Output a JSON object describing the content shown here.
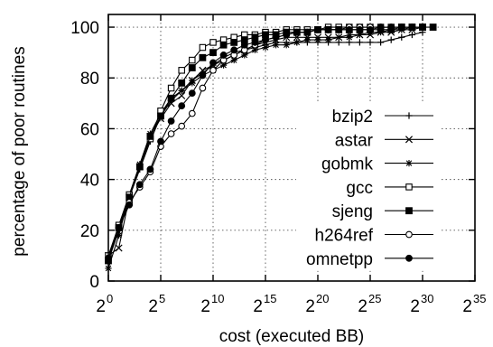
{
  "chart_data": {
    "type": "line",
    "title": "",
    "xlabel": "cost (executed BB)",
    "ylabel": "percentage of poor routines",
    "x_scale": "log2",
    "xlim": [
      1,
      34359738368
    ],
    "ylim": [
      0,
      105
    ],
    "x_ticks": [
      {
        "base": "2",
        "exp": "0",
        "value": 1
      },
      {
        "base": "2",
        "exp": "5",
        "value": 32
      },
      {
        "base": "2",
        "exp": "10",
        "value": 1024
      },
      {
        "base": "2",
        "exp": "15",
        "value": 32768
      },
      {
        "base": "2",
        "exp": "20",
        "value": 1048576
      },
      {
        "base": "2",
        "exp": "25",
        "value": 33554432
      },
      {
        "base": "2",
        "exp": "30",
        "value": 1073741824
      },
      {
        "base": "2",
        "exp": "35",
        "value": 34359738368
      }
    ],
    "y_ticks": [
      "0",
      "20",
      "40",
      "60",
      "80",
      "100"
    ],
    "grid": true,
    "legend_position": "right",
    "series": [
      {
        "name": "bzip2",
        "marker": "plus",
        "x": [
          1,
          2,
          4,
          8,
          16,
          32,
          64,
          128,
          256,
          512,
          1024,
          2048,
          4096,
          8192,
          16384,
          32768,
          65536,
          131072,
          262144,
          524288,
          1048576,
          2097152,
          4194304,
          8388608,
          16777216,
          33554432,
          67108864,
          134217728,
          268435456,
          536870912,
          1073741824
        ],
        "y": [
          8,
          20,
          33,
          44,
          55,
          65,
          71,
          75,
          79,
          82,
          85,
          87,
          89,
          91,
          92,
          93,
          94,
          94,
          94,
          94,
          94,
          94,
          94,
          94,
          94,
          94,
          94,
          95,
          96,
          97,
          98
        ]
      },
      {
        "name": "astar",
        "marker": "x",
        "x": [
          1,
          2,
          4,
          8,
          16,
          32,
          64,
          128,
          256,
          512,
          1024,
          2048,
          4096,
          8192,
          16384,
          32768,
          65536,
          131072,
          262144,
          524288,
          1048576,
          2097152,
          4194304,
          8388608,
          16777216,
          33554432,
          67108864,
          134217728,
          268435456,
          536870912,
          1073741824
        ],
        "y": [
          10,
          13,
          33,
          45,
          57,
          64,
          70,
          73,
          79,
          83,
          85,
          88,
          90,
          91,
          93,
          94,
          95,
          96,
          96,
          96,
          96,
          96,
          96,
          97,
          97,
          97,
          98,
          98,
          99,
          99,
          100
        ]
      },
      {
        "name": "gobmk",
        "marker": "asterisk",
        "x": [
          1,
          2,
          4,
          8,
          16,
          32,
          64,
          128,
          256,
          512,
          1024,
          2048,
          4096,
          8192,
          16384,
          32768,
          65536,
          131072,
          262144,
          524288,
          1048576,
          2097152,
          4194304,
          8388608,
          16777216,
          33554432,
          67108864,
          134217728,
          268435456,
          536870912,
          1073741824
        ],
        "y": [
          5,
          18,
          34,
          46,
          58,
          66,
          72,
          75,
          78,
          81,
          83,
          85,
          87,
          89,
          91,
          92,
          93,
          93,
          94,
          95,
          95,
          95,
          96,
          96,
          97,
          98,
          98,
          99,
          99,
          100,
          100
        ]
      },
      {
        "name": "gcc",
        "marker": "open-square",
        "x": [
          1,
          2,
          4,
          8,
          16,
          32,
          64,
          128,
          256,
          512,
          1024,
          2048,
          4096,
          8192,
          16384,
          32768,
          65536,
          131072,
          262144,
          524288,
          1048576,
          2097152,
          4194304,
          8388608,
          16777216,
          33554432,
          67108864,
          134217728,
          268435456,
          536870912,
          1073741824
        ],
        "y": [
          10,
          22,
          34,
          45,
          56,
          67,
          76,
          83,
          87,
          92,
          94,
          95,
          96,
          97,
          97,
          98,
          98,
          99,
          99,
          99,
          99,
          100,
          100,
          100,
          100,
          100,
          100,
          100,
          100,
          100,
          100
        ]
      },
      {
        "name": "sjeng",
        "marker": "filled-square",
        "x": [
          1,
          2,
          4,
          8,
          16,
          32,
          64,
          128,
          256,
          512,
          1024,
          2048,
          4096,
          8192,
          16384,
          32768,
          65536,
          131072,
          262144,
          524288,
          1048576,
          2097152,
          4194304,
          8388608,
          16777216,
          33554432,
          67108864,
          134217728,
          268435456,
          536870912,
          1073741824,
          2147483648
        ],
        "y": [
          8,
          21,
          33,
          45,
          57,
          65,
          72,
          78,
          84,
          88,
          90,
          93,
          94,
          95,
          96,
          97,
          97,
          98,
          98,
          98,
          99,
          99,
          99,
          99,
          99,
          99,
          99,
          99,
          100,
          100,
          100,
          100
        ]
      },
      {
        "name": "h264ref",
        "marker": "open-circle",
        "x": [
          1,
          2,
          4,
          8,
          16,
          32,
          64,
          128,
          256,
          512,
          1024,
          2048,
          4096,
          8192,
          16384,
          32768,
          65536,
          131072,
          262144,
          524288,
          1048576,
          2097152,
          4194304,
          8388608,
          16777216,
          33554432,
          67108864,
          134217728,
          268435456,
          536870912,
          1073741824
        ],
        "y": [
          9,
          21,
          31,
          37,
          43,
          53,
          58,
          61,
          66,
          76,
          83,
          87,
          89,
          91,
          93,
          95,
          96,
          97,
          98,
          98,
          99,
          99,
          99,
          100,
          100,
          100,
          100,
          100,
          100,
          100,
          100
        ]
      },
      {
        "name": "omnetpp",
        "marker": "filled-circle",
        "x": [
          1,
          2,
          4,
          8,
          16,
          32,
          64,
          128,
          256,
          512,
          1024,
          2048,
          4096,
          8192,
          16384,
          32768,
          65536,
          131072,
          262144,
          524288,
          1048576,
          2097152,
          4194304,
          8388608,
          16777216,
          33554432,
          67108864,
          134217728,
          268435456,
          536870912,
          1073741824
        ],
        "y": [
          9,
          21,
          30,
          38,
          44,
          55,
          63,
          69,
          74,
          81,
          86,
          89,
          91,
          93,
          94,
          95,
          96,
          97,
          98,
          98,
          99,
          99,
          99,
          99,
          99,
          99,
          100,
          100,
          100,
          100,
          100
        ]
      }
    ]
  }
}
